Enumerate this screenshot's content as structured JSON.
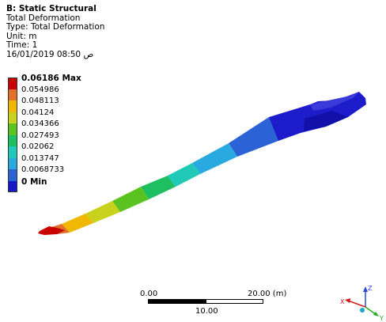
{
  "header": {
    "title": "B: Static Structural",
    "result": "Total Deformation",
    "type_line": "Type: Total Deformation",
    "unit_line": "Unit: m",
    "time_line": "Time: 1",
    "date_line": "16/01/2019 08:50 ص"
  },
  "legend": {
    "items": [
      {
        "label": "0.06186 Max",
        "color": "#c80000",
        "bold": true
      },
      {
        "label": "0.054986",
        "color": "#e0702a",
        "bold": false
      },
      {
        "label": "0.048113",
        "color": "#f0b800",
        "bold": false
      },
      {
        "label": "0.04124",
        "color": "#c8d21c",
        "bold": false
      },
      {
        "label": "0.034366",
        "color": "#5bc31f",
        "bold": false
      },
      {
        "label": "0.027493",
        "color": "#1dbf60",
        "bold": false
      },
      {
        "label": "0.02062",
        "color": "#21c9b8",
        "bold": false
      },
      {
        "label": "0.013747",
        "color": "#28a9df",
        "bold": false
      },
      {
        "label": "0.0068733",
        "color": "#2b63d6",
        "bold": false
      },
      {
        "label": "0 Min",
        "color": "#1818c8",
        "bold": true
      }
    ]
  },
  "scale_bar": {
    "left_label": "0.00",
    "right_label": "20.00 (m)",
    "mid_label": "10.00"
  },
  "triad": {
    "x_label": "X",
    "y_label": "Y",
    "z_label": "Z"
  }
}
